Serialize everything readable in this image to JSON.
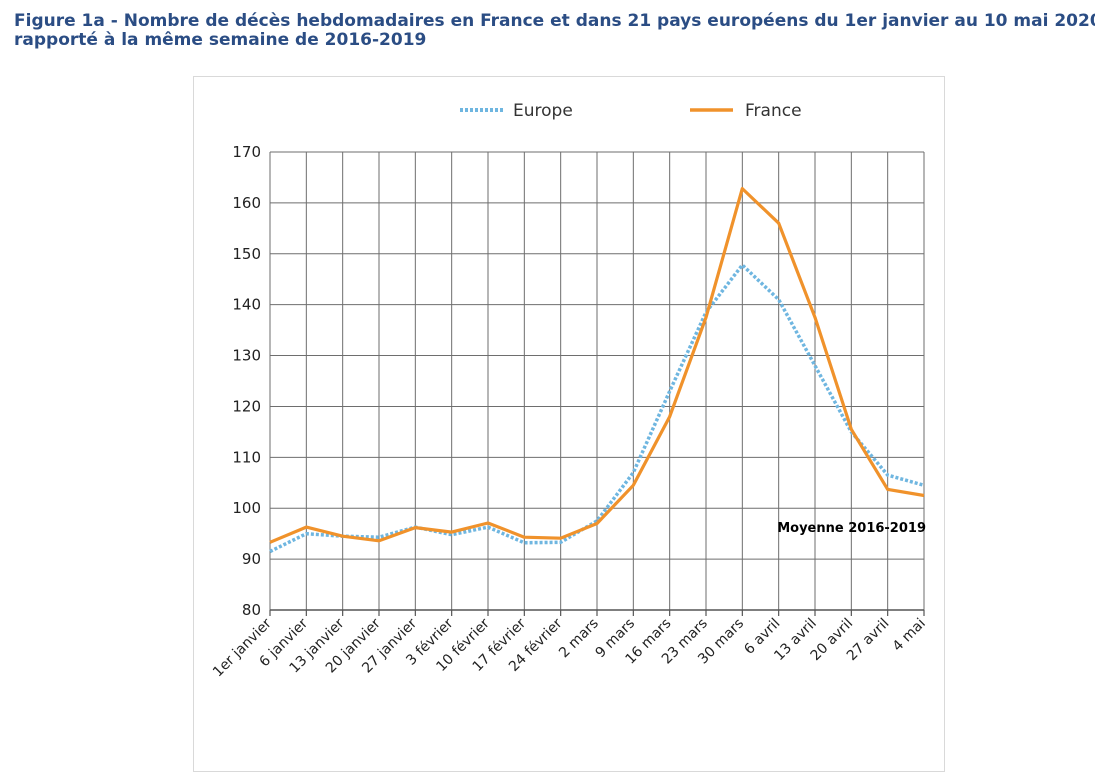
{
  "figure": {
    "title_line1": "Figure 1a - Nombre de décès hebdomadaires en France et dans 21 pays européens du 1er janvier au 10 mai 2020",
    "title_line2": "rapporté à la même semaine de 2016-2019"
  },
  "chart_data": {
    "type": "line",
    "title": "",
    "xlabel": "",
    "ylabel": "",
    "ylim": [
      80,
      170
    ],
    "yticks": [
      80,
      90,
      100,
      110,
      120,
      130,
      140,
      150,
      160,
      170
    ],
    "grid": true,
    "legend_position": "top",
    "categories": [
      "1er janvier",
      "6 janvier",
      "13 janvier",
      "20 janvier",
      "27 janvier",
      "3 février",
      "10 février",
      "17 février",
      "24 février",
      "2 mars",
      "9 mars",
      "16 mars",
      "23 mars",
      "30 mars",
      "6 avril",
      "13 avril",
      "20 avril",
      "27 avril",
      "4 mai"
    ],
    "series": [
      {
        "name": "Europe",
        "style": "dotted",
        "color": "#6fb6e0",
        "values": [
          91.5,
          95,
          94.5,
          94.3,
          96.3,
          94.8,
          96.3,
          93.2,
          93.3,
          97.5,
          107,
          123,
          138.5,
          147.8,
          141,
          128,
          115,
          106.5,
          104.5
        ]
      },
      {
        "name": "France",
        "style": "solid",
        "color": "#f0922b",
        "values": [
          93.3,
          96.3,
          94.5,
          93.6,
          96.2,
          95.3,
          97.1,
          94.3,
          94.1,
          97,
          104.5,
          118,
          137.5,
          162.8,
          156,
          137.5,
          115.5,
          103.7,
          102.5
        ]
      }
    ],
    "annotations": [
      {
        "text": "Moyenne 2016-2019",
        "y": 100
      }
    ]
  }
}
